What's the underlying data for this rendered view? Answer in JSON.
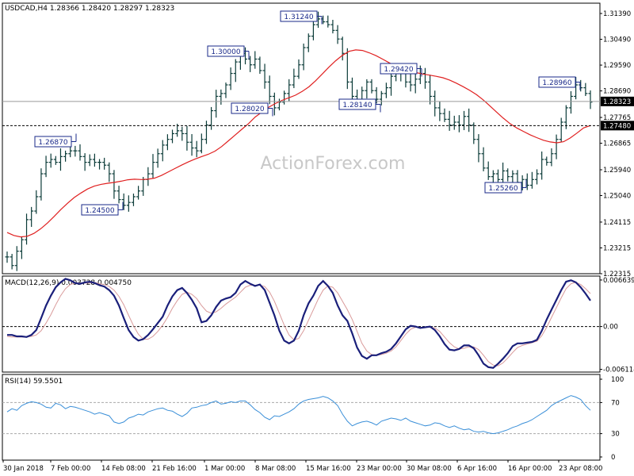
{
  "chart_data": [
    {
      "type": "bar",
      "subtype": "ohlc-bars",
      "header": "USDCAD,H4  1.28366 1.28420 1.28297 1.28323",
      "watermark": "ActionForex.com",
      "ylim": [
        1.22315,
        1.3175
      ],
      "y_ticks": [
        "1.31390",
        "1.30490",
        "1.29590",
        "1.28690",
        "1.27765",
        "1.26865",
        "1.25940",
        "1.25040",
        "1.24115",
        "1.23215",
        "1.22315"
      ],
      "current_price": "1.28323",
      "support_level": "1.27480",
      "moving_average": "red",
      "price_series": [
        1.229,
        1.226,
        1.231,
        1.235,
        1.242,
        1.245,
        1.25,
        1.258,
        1.262,
        1.263,
        1.262,
        1.264,
        1.265,
        1.266,
        1.266,
        1.264,
        1.262,
        1.263,
        1.262,
        1.262,
        1.261,
        1.258,
        1.252,
        1.249,
        1.247,
        1.248,
        1.25,
        1.252,
        1.256,
        1.258,
        1.262,
        1.265,
        1.268,
        1.27,
        1.272,
        1.273,
        1.272,
        1.269,
        1.267,
        1.266,
        1.27,
        1.275,
        1.28,
        1.285,
        1.286,
        1.289,
        1.293,
        1.297,
        1.3,
        1.298,
        1.296,
        1.298,
        1.294,
        1.29,
        1.285,
        1.281,
        1.283,
        1.286,
        1.289,
        1.292,
        1.296,
        1.302,
        1.306,
        1.31,
        1.312,
        1.311,
        1.31,
        1.308,
        1.305,
        1.3,
        1.29,
        1.285,
        1.283,
        1.287,
        1.29,
        1.287,
        1.284,
        1.286,
        1.288,
        1.292,
        1.294,
        1.293,
        1.29,
        1.289,
        1.291,
        1.293,
        1.29,
        1.285,
        1.281,
        1.279,
        1.277,
        1.275,
        1.276,
        1.275,
        1.278,
        1.275,
        1.27,
        1.265,
        1.26,
        1.257,
        1.258,
        1.256,
        1.259,
        1.257,
        1.258,
        1.255,
        1.256,
        1.254,
        1.256,
        1.258,
        1.263,
        1.262,
        1.265,
        1.27,
        1.276,
        1.281,
        1.285,
        1.289,
        1.288,
        1.286,
        1.283
      ],
      "ma_series": [
        1.2375,
        1.2365,
        1.236,
        1.2362,
        1.2372,
        1.2388,
        1.2408,
        1.2431,
        1.2455,
        1.2477,
        1.2497,
        1.2513,
        1.2527,
        1.2537,
        1.2543,
        1.2547,
        1.255,
        1.2554,
        1.2559,
        1.2561,
        1.256,
        1.2561,
        1.2565,
        1.2574,
        1.2586,
        1.2598,
        1.261,
        1.2621,
        1.2631,
        1.264,
        1.2648,
        1.2659,
        1.2675,
        1.2695,
        1.2715,
        1.2735,
        1.2755,
        1.2778,
        1.2795,
        1.2812,
        1.2825,
        1.2836,
        1.2845,
        1.2854,
        1.2867,
        1.2883,
        1.2904,
        1.2928,
        1.2952,
        1.2974,
        1.2993,
        1.3007,
        1.3012,
        1.301,
        1.3002,
        1.2992,
        1.298,
        1.2967,
        1.2955,
        1.2945,
        1.2938,
        1.2933,
        1.2928,
        1.2924,
        1.292,
        1.2915,
        1.2907,
        1.2896,
        1.2884,
        1.2871,
        1.2856,
        1.2838,
        1.2817,
        1.2795,
        1.2774,
        1.2755,
        1.274,
        1.2728,
        1.2716,
        1.2706,
        1.2697,
        1.2691,
        1.2688,
        1.2692,
        1.2705,
        1.2722,
        1.274,
        1.2748
      ],
      "ma_start_index": 0,
      "annotations": [
        "1.26870",
        "1.24500",
        "1.30000",
        "1.28020",
        "1.31240",
        "1.28140",
        "1.29420",
        "1.25260",
        "1.28960"
      ],
      "x_ticks": [
        "30 Jan 2018",
        "7 Feb 00:00",
        "14 Feb 08:00",
        "21 Feb 16:00",
        "1 Mar 00:00",
        "8 Mar 08:00",
        "15 Mar 16:00",
        "23 Mar 00:00",
        "30 Mar 08:00",
        "6 Apr 16:00",
        "16 Apr 00:00",
        "23 Apr 08:00"
      ]
    },
    {
      "type": "line",
      "title": "MACD(12,26,9) 0.003728 0.004750",
      "y_ticks": [
        "0.006639",
        "0.00",
        "-0.006114"
      ],
      "ylim": [
        -0.0065,
        0.0072
      ],
      "series": [
        {
          "values": [
            -0.0012,
            -0.0012,
            -0.0014,
            -0.0014,
            -0.0015,
            -0.0012,
            -0.0005,
            0.0012,
            0.003,
            0.0044,
            0.0056,
            0.0063,
            0.0068,
            0.0066,
            0.0062,
            0.0061,
            0.0063,
            0.0064,
            0.0062,
            0.0059,
            0.0057,
            0.0052,
            0.0044,
            0.003,
            0.0012,
            -0.0005,
            -0.0015,
            -0.002,
            -0.0018,
            -0.0012,
            -0.0004,
            0.0005,
            0.0014,
            0.003,
            0.0043,
            0.0052,
            0.0055,
            0.0048,
            0.0038,
            0.0026,
            0.0006,
            0.0008,
            0.0016,
            0.0028,
            0.0037,
            0.004,
            0.0042,
            0.0048,
            0.006,
            0.0065,
            0.0061,
            0.0058,
            0.006,
            0.0052,
            0.0034,
            0.0016,
            -0.0006,
            -0.002,
            -0.0024,
            -0.002,
            -0.0006,
            0.0016,
            0.0033,
            0.0044,
            0.0058,
            0.0065,
            0.0058,
            0.0048,
            0.003,
            0.0016,
            0.0008,
            -0.001,
            -0.003,
            -0.0042,
            -0.0046,
            -0.0041,
            -0.0041,
            -0.0038,
            -0.0036,
            -0.0032,
            -0.0024,
            -0.0014,
            -0.0004,
            0.0001,
            0.0,
            -0.0002,
            -0.0001,
            0.0,
            -0.0005,
            -0.0014,
            -0.0025,
            -0.0033,
            -0.0034,
            -0.0032,
            -0.0027,
            -0.0027,
            -0.0031,
            -0.0041,
            -0.0053,
            -0.0058,
            -0.0059,
            -0.0053,
            -0.0046,
            -0.0038,
            -0.0028,
            -0.0024,
            -0.0024,
            -0.0023,
            -0.0022,
            -0.0019,
            -0.0006,
            0.001,
            0.0024,
            0.0038,
            0.0052,
            0.0064,
            0.0066,
            0.0063,
            0.0056,
            0.0047,
            0.0037
          ]
        },
        {
          "values": [
            -0.0014,
            -0.0015,
            -0.0015,
            -0.0015,
            -0.0015,
            -0.0014,
            -0.0012,
            -0.0006,
            0.0005,
            0.0017,
            0.0031,
            0.0044,
            0.0054,
            0.006,
            0.0062,
            0.0062,
            0.0062,
            0.0062,
            0.0063,
            0.0061,
            0.006,
            0.0057,
            0.0052,
            0.0043,
            0.0031,
            0.0016,
            0.0001,
            -0.0011,
            -0.0018,
            -0.0018,
            -0.0014,
            -0.0007,
            0.0002,
            0.0013,
            0.0026,
            0.0037,
            0.0046,
            0.0049,
            0.0046,
            0.004,
            0.003,
            0.0022,
            0.0019,
            0.0021,
            0.0026,
            0.0032,
            0.0037,
            0.0042,
            0.0049,
            0.0056,
            0.0059,
            0.0059,
            0.0059,
            0.0057,
            0.0049,
            0.0036,
            0.0019,
            0.0002,
            -0.0012,
            -0.0019,
            -0.0017,
            -0.0006,
            0.0009,
            0.0024,
            0.0039,
            0.0052,
            0.0058,
            0.0056,
            0.0048,
            0.0036,
            0.0024,
            0.001,
            -0.0007,
            -0.0024,
            -0.0035,
            -0.004,
            -0.0041,
            -0.004,
            -0.0038,
            -0.0035,
            -0.0029,
            -0.002,
            -0.0011,
            -0.0004,
            -0.0001,
            -0.0001,
            -0.0001,
            -0.0001,
            -0.0002,
            -0.0007,
            -0.0015,
            -0.0023,
            -0.0029,
            -0.0032,
            -0.0031,
            -0.0029,
            -0.0029,
            -0.0033,
            -0.0041,
            -0.005,
            -0.0055,
            -0.0056,
            -0.0052,
            -0.0045,
            -0.0037,
            -0.003,
            -0.0027,
            -0.0025,
            -0.0023,
            -0.0021,
            -0.0013,
            -0.0001,
            0.0013,
            0.0027,
            0.0041,
            0.0054,
            0.0061,
            0.0063,
            0.006,
            0.0054,
            0.0047
          ]
        }
      ]
    },
    {
      "type": "line",
      "title": "RSI(14) 59.5501",
      "ylim": [
        0,
        100
      ],
      "y_ticks": [
        "100",
        "70",
        "30",
        "0"
      ],
      "levels": [
        70,
        30
      ],
      "series": [
        {
          "values": [
            58,
            62,
            60,
            66,
            69,
            71,
            70,
            68,
            64,
            63,
            69,
            67,
            62,
            65,
            64,
            62,
            60,
            58,
            55,
            57,
            55,
            53,
            45,
            43,
            45,
            50,
            52,
            55,
            54,
            58,
            60,
            62,
            63,
            60,
            59,
            55,
            52,
            56,
            63,
            64,
            66,
            67,
            70,
            72,
            68,
            69,
            71,
            70,
            72,
            72,
            67,
            61,
            57,
            51,
            48,
            53,
            52,
            55,
            58,
            62,
            68,
            72,
            74,
            75,
            76,
            78,
            76,
            72,
            66,
            55,
            46,
            40,
            43,
            45,
            46,
            44,
            41,
            46,
            48,
            50,
            49,
            47,
            50,
            46,
            44,
            42,
            40,
            41,
            44,
            43,
            40,
            38,
            40,
            37,
            35,
            36,
            33,
            32,
            33,
            31,
            30,
            31,
            33,
            35,
            38,
            40,
            43,
            45,
            48,
            52,
            56,
            60,
            66,
            70,
            73,
            76,
            79,
            77,
            74,
            66,
            60
          ]
        }
      ]
    }
  ]
}
